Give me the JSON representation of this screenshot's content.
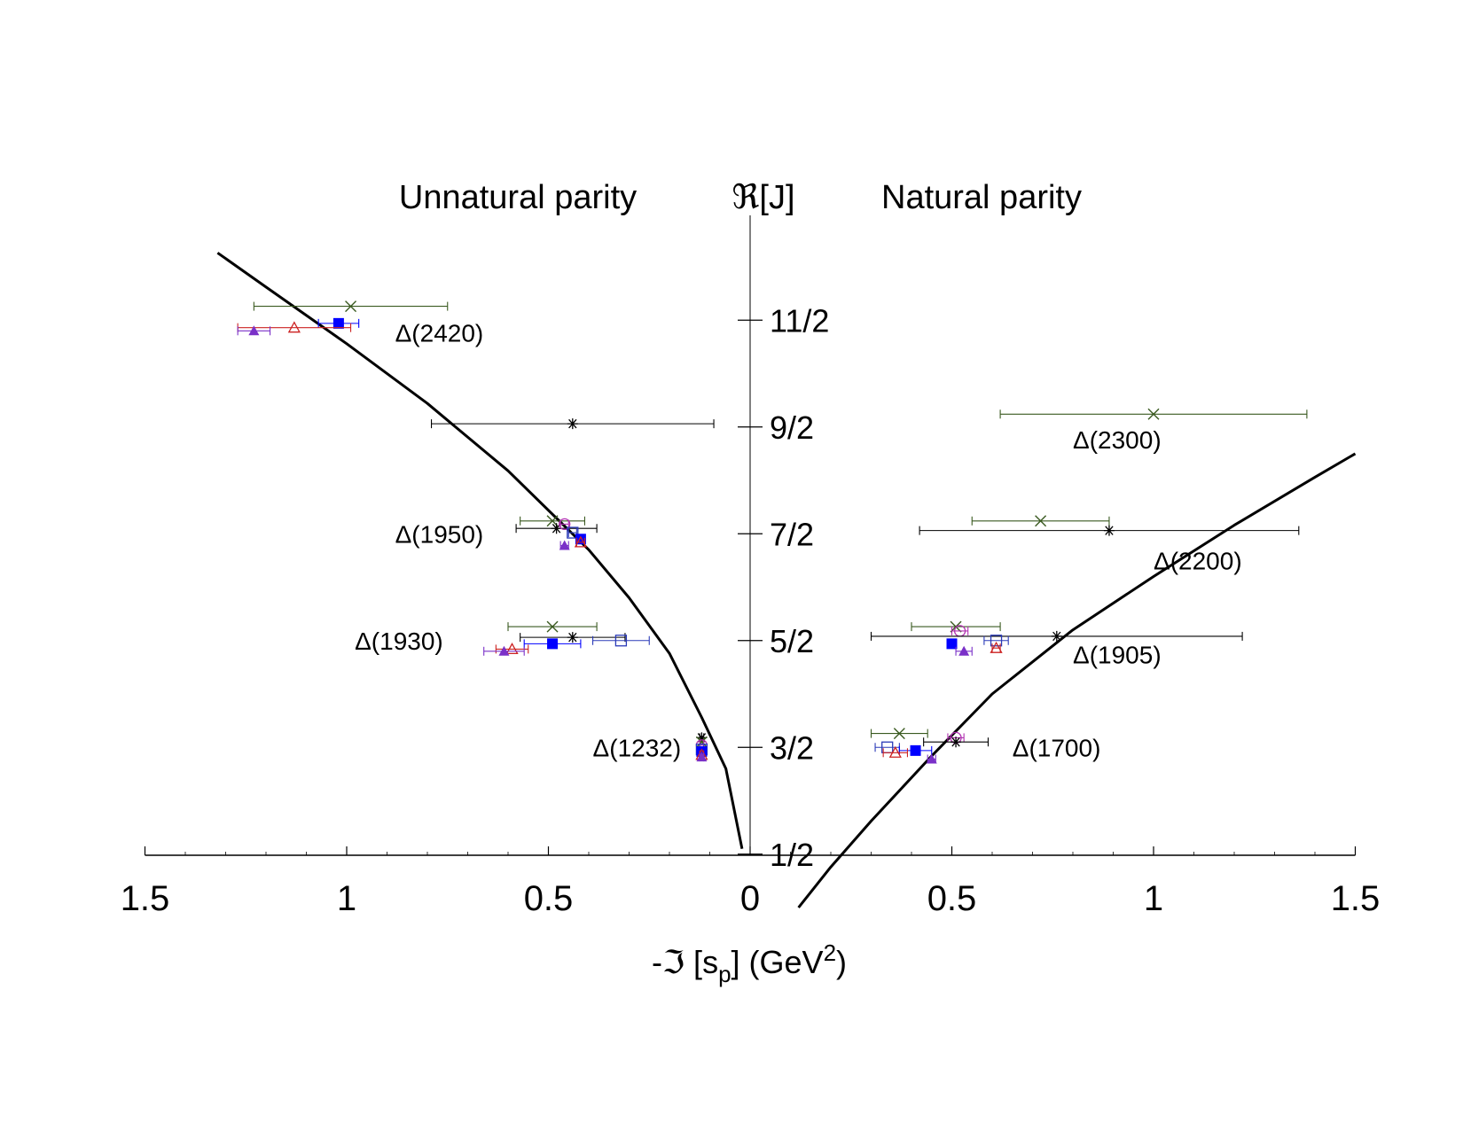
{
  "chart_data": {
    "type": "scatter",
    "titles": {
      "left": "Unnatural parity",
      "center": "ℜ[J]",
      "right": "Natural parity"
    },
    "xlabel": "-ℑ [s_p] (GeV²)",
    "xlabel_parts": {
      "prefix": "-ℑ [s",
      "sub": "p",
      "mid": "] (GeV",
      "sup": "2",
      "suffix": ")"
    },
    "xlim": [
      -1.5,
      1.5
    ],
    "x_ticks": [
      {
        "v": -1.5,
        "label": "1.5"
      },
      {
        "v": -1,
        "label": "1"
      },
      {
        "v": -0.5,
        "label": "0.5"
      },
      {
        "v": 0,
        "label": "0"
      },
      {
        "v": 0.5,
        "label": "0.5"
      },
      {
        "v": 1,
        "label": "1"
      },
      {
        "v": 1.5,
        "label": "1.5"
      }
    ],
    "ylim": [
      0,
      6.5
    ],
    "y_ticks": [
      {
        "v": 0.5,
        "label": "1/2"
      },
      {
        "v": 1.5,
        "label": "3/2"
      },
      {
        "v": 2.5,
        "label": "5/2"
      },
      {
        "v": 3.5,
        "label": "7/2"
      },
      {
        "v": 4.5,
        "label": "9/2"
      },
      {
        "v": 5.5,
        "label": "11/2"
      }
    ],
    "colors": {
      "black": "#000000",
      "green": "#3a5a20",
      "blue": "#0000ff",
      "red": "#cc2222",
      "purple": "#7a30c8",
      "magenta": "#b030b0",
      "openblue": "#2a3ab8"
    },
    "curves": [
      {
        "name": "unnatural",
        "points": [
          [
            -1.32,
            6.13
          ],
          [
            -1.2,
            5.81
          ],
          [
            -1.0,
            5.28
          ],
          [
            -0.8,
            4.72
          ],
          [
            -0.6,
            4.09
          ],
          [
            -0.4,
            3.35
          ],
          [
            -0.3,
            2.9
          ],
          [
            -0.2,
            2.38
          ],
          [
            -0.12,
            1.78
          ],
          [
            -0.06,
            1.3
          ],
          [
            -0.02,
            0.55
          ]
        ]
      },
      {
        "name": "natural",
        "points": [
          [
            0.12,
            0.0
          ],
          [
            0.2,
            0.38
          ],
          [
            0.3,
            0.81
          ],
          [
            0.45,
            1.42
          ],
          [
            0.6,
            2.0
          ],
          [
            0.8,
            2.6
          ],
          [
            1.0,
            3.1
          ],
          [
            1.2,
            3.58
          ],
          [
            1.4,
            4.03
          ],
          [
            1.5,
            4.25
          ]
        ]
      }
    ],
    "state_labels": [
      {
        "text": "Δ(2420)",
        "x": -0.88,
        "y": 5.38
      },
      {
        "text": "Δ(1950)",
        "x": -0.88,
        "y": 3.5
      },
      {
        "text": "Δ(1930)",
        "x": -0.98,
        "y": 2.5
      },
      {
        "text": "Δ(1232)",
        "x": -0.39,
        "y": 1.5
      },
      {
        "text": "Δ(2300)",
        "x": 0.8,
        "y": 4.38
      },
      {
        "text": "Δ(2200)",
        "x": 1.0,
        "y": 3.25
      },
      {
        "text": "Δ(1905)",
        "x": 0.8,
        "y": 2.37
      },
      {
        "text": "Δ(1700)",
        "x": 0.65,
        "y": 1.5
      }
    ],
    "points": [
      {
        "x": -0.99,
        "y": 5.63,
        "xerr": 0.24,
        "marker": "x",
        "color": "green"
      },
      {
        "x": -1.02,
        "y": 5.47,
        "xerr": 0.05,
        "marker": "filled-square",
        "color": "blue"
      },
      {
        "x": -1.13,
        "y": 5.43,
        "xerr": 0.14,
        "marker": "open-triangle",
        "color": "red"
      },
      {
        "x": -1.23,
        "y": 5.4,
        "xerr": 0.04,
        "marker": "filled-triangle",
        "color": "purple"
      },
      {
        "x": -0.44,
        "y": 4.53,
        "xerr": 0.35,
        "marker": "star",
        "color": "black"
      },
      {
        "x": -0.49,
        "y": 3.62,
        "xerr": 0.08,
        "marker": "x",
        "color": "green"
      },
      {
        "x": -0.48,
        "y": 3.55,
        "xerr": 0.1,
        "marker": "star",
        "color": "black"
      },
      {
        "x": -0.46,
        "y": 3.59,
        "xerr": 0.01,
        "marker": "open-circle",
        "color": "magenta"
      },
      {
        "x": -0.44,
        "y": 3.51,
        "xerr": 0.01,
        "marker": "open-square",
        "color": "openblue"
      },
      {
        "x": -0.42,
        "y": 3.45,
        "xerr": 0.01,
        "marker": "filled-square",
        "color": "blue"
      },
      {
        "x": -0.42,
        "y": 3.42,
        "xerr": 0.01,
        "marker": "open-triangle",
        "color": "red"
      },
      {
        "x": -0.46,
        "y": 3.39,
        "xerr": 0.01,
        "marker": "filled-triangle",
        "color": "purple"
      },
      {
        "x": -0.49,
        "y": 2.63,
        "xerr": 0.11,
        "marker": "x",
        "color": "green"
      },
      {
        "x": -0.44,
        "y": 2.53,
        "xerr": 0.13,
        "marker": "star",
        "color": "black"
      },
      {
        "x": -0.32,
        "y": 2.5,
        "xerr": 0.07,
        "marker": "open-square",
        "color": "openblue"
      },
      {
        "x": -0.49,
        "y": 2.47,
        "xerr": 0.07,
        "marker": "filled-square",
        "color": "blue"
      },
      {
        "x": -0.59,
        "y": 2.42,
        "xerr": 0.04,
        "marker": "open-triangle",
        "color": "red"
      },
      {
        "x": -0.61,
        "y": 2.4,
        "xerr": 0.05,
        "marker": "filled-triangle",
        "color": "purple"
      },
      {
        "x": -0.12,
        "y": 1.59,
        "xerr": 0.005,
        "marker": "star",
        "color": "black"
      },
      {
        "x": -0.12,
        "y": 1.55,
        "xerr": 0.005,
        "marker": "x",
        "color": "green"
      },
      {
        "x": -0.12,
        "y": 1.52,
        "xerr": 0.005,
        "marker": "open-circle",
        "color": "magenta"
      },
      {
        "x": -0.12,
        "y": 1.48,
        "xerr": 0.005,
        "marker": "open-square",
        "color": "openblue"
      },
      {
        "x": -0.12,
        "y": 1.46,
        "xerr": 0.005,
        "marker": "filled-square",
        "color": "blue"
      },
      {
        "x": -0.12,
        "y": 1.43,
        "xerr": 0.005,
        "marker": "open-triangle",
        "color": "red"
      },
      {
        "x": -0.12,
        "y": 1.41,
        "xerr": 0.005,
        "marker": "filled-triangle",
        "color": "purple"
      },
      {
        "x": 1.0,
        "y": 4.62,
        "xerr": 0.38,
        "marker": "x",
        "color": "green"
      },
      {
        "x": 0.72,
        "y": 3.62,
        "xerr": 0.17,
        "marker": "x",
        "color": "green"
      },
      {
        "x": 0.89,
        "y": 3.53,
        "xerr": 0.47,
        "marker": "star",
        "color": "black"
      },
      {
        "x": 0.51,
        "y": 2.63,
        "xerr": 0.11,
        "marker": "x",
        "color": "green"
      },
      {
        "x": 0.52,
        "y": 2.59,
        "xerr": 0.02,
        "marker": "open-circle",
        "color": "magenta"
      },
      {
        "x": 0.76,
        "y": 2.54,
        "xerr": 0.46,
        "marker": "star",
        "color": "black"
      },
      {
        "x": 0.61,
        "y": 2.5,
        "xerr": 0.03,
        "marker": "open-square",
        "color": "openblue"
      },
      {
        "x": 0.5,
        "y": 2.47,
        "xerr": 0.01,
        "marker": "filled-square",
        "color": "blue"
      },
      {
        "x": 0.61,
        "y": 2.43,
        "xerr": 0.01,
        "marker": "open-triangle",
        "color": "red"
      },
      {
        "x": 0.53,
        "y": 2.4,
        "xerr": 0.02,
        "marker": "filled-triangle",
        "color": "purple"
      },
      {
        "x": 0.37,
        "y": 1.63,
        "xerr": 0.07,
        "marker": "x",
        "color": "green"
      },
      {
        "x": 0.51,
        "y": 1.59,
        "xerr": 0.02,
        "marker": "open-circle",
        "color": "magenta"
      },
      {
        "x": 0.51,
        "y": 1.55,
        "xerr": 0.08,
        "marker": "star",
        "color": "black"
      },
      {
        "x": 0.34,
        "y": 1.5,
        "xerr": 0.03,
        "marker": "open-square",
        "color": "openblue"
      },
      {
        "x": 0.41,
        "y": 1.47,
        "xerr": 0.04,
        "marker": "filled-square",
        "color": "blue"
      },
      {
        "x": 0.36,
        "y": 1.45,
        "xerr": 0.03,
        "marker": "open-triangle",
        "color": "red"
      },
      {
        "x": 0.45,
        "y": 1.39,
        "xerr": 0.01,
        "marker": "filled-triangle",
        "color": "purple"
      }
    ]
  }
}
